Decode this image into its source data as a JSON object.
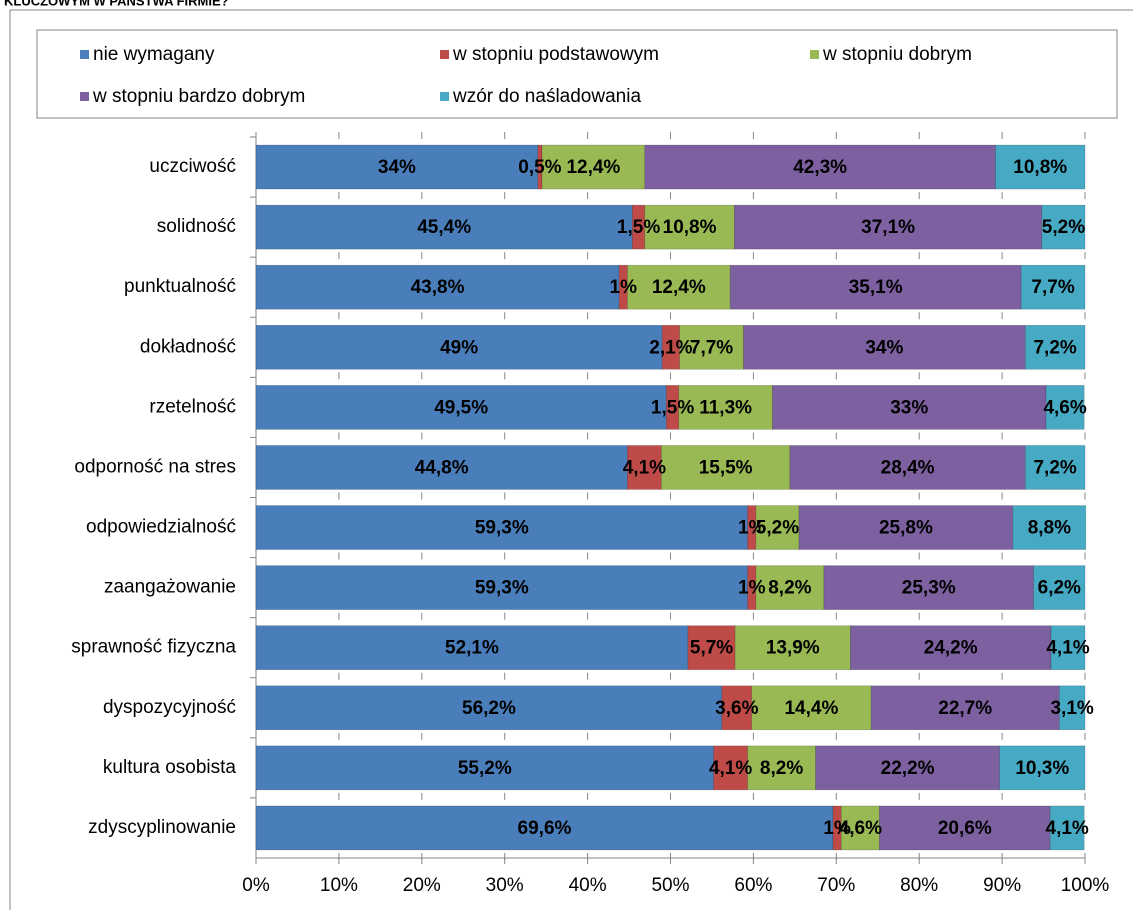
{
  "chart_data": {
    "type": "stacked-bar-horizontal",
    "title": "KLUCZOWYM W PAŃSTWA FIRMIE?",
    "categories": [
      "uczciwość",
      "solidność",
      "punktualność",
      "dokładność",
      "rzetelność",
      "odporność na stres",
      "odpowiedzialność",
      "zaangażowanie",
      "sprawność fizyczna",
      "dyspozycyjność",
      "kultura osobista",
      "zdyscyplinowanie"
    ],
    "series": [
      {
        "name": "nie wymagany",
        "color": "#4a7ebb",
        "values": [
          34,
          45.4,
          43.8,
          49,
          49.5,
          44.8,
          59.3,
          59.3,
          52.1,
          56.2,
          55.2,
          69.6
        ],
        "value_labels": [
          "34%",
          "45,4%",
          "43,8%",
          "49%",
          "49,5%",
          "44,8%",
          "59,3%",
          "59,3%",
          "52,1%",
          "56,2%",
          "55,2%",
          "69,6%"
        ]
      },
      {
        "name": "w stopniu podstawowym",
        "color": "#be4b48",
        "values": [
          0.5,
          1.5,
          1,
          2.1,
          1.5,
          4.1,
          1,
          1,
          5.7,
          3.6,
          4.1,
          1
        ],
        "value_labels": [
          "0,5%",
          "1,5%",
          "1%",
          "2,1%",
          "1,5%",
          "4,1%",
          "1%",
          "1%",
          "5,7%",
          "3,6%",
          "4,1%",
          "1%"
        ]
      },
      {
        "name": "w stopniu dobrym",
        "color": "#98b954",
        "values": [
          12.4,
          10.8,
          12.4,
          7.7,
          11.3,
          15.5,
          5.2,
          8.2,
          13.9,
          14.4,
          8.2,
          4.6
        ],
        "value_labels": [
          "12,4%",
          "10,8%",
          "12,4%",
          "7,7%",
          "11,3%",
          "15,5%",
          "5,2%",
          "8,2%",
          "13,9%",
          "14,4%",
          "8,2%",
          "4,6%"
        ]
      },
      {
        "name": "w stopniu bardzo dobrym",
        "color": "#7d60a0",
        "values": [
          42.3,
          37.1,
          35.1,
          34,
          33,
          28.4,
          25.8,
          25.3,
          24.2,
          22.7,
          22.2,
          20.6
        ],
        "value_labels": [
          "42,3%",
          "37,1%",
          "35,1%",
          "34%",
          "33%",
          "28,4%",
          "25,8%",
          "25,3%",
          "24,2%",
          "22,7%",
          "22,2%",
          "20,6%"
        ]
      },
      {
        "name": "wzór do naśladowania",
        "color": "#46aac5",
        "values": [
          10.8,
          5.2,
          7.7,
          7.2,
          4.6,
          7.2,
          8.8,
          6.2,
          4.1,
          3.1,
          10.3,
          4.1
        ],
        "value_labels": [
          "10,8%",
          "5,2%",
          "7,7%",
          "7,2%",
          "4,6%",
          "7,2%",
          "8,8%",
          "6,2%",
          "4,1%",
          "3,1%",
          "10,3%",
          "4,1%"
        ]
      }
    ],
    "xlim": [
      0,
      100
    ],
    "xticks": [
      {
        "value": 0,
        "label": "0%"
      },
      {
        "value": 10,
        "label": "10%"
      },
      {
        "value": 20,
        "label": "20%"
      },
      {
        "value": 30,
        "label": "30%"
      },
      {
        "value": 40,
        "label": "40%"
      },
      {
        "value": 50,
        "label": "50%"
      },
      {
        "value": 60,
        "label": "60%"
      },
      {
        "value": 70,
        "label": "70%"
      },
      {
        "value": 80,
        "label": "80%"
      },
      {
        "value": 90,
        "label": "90%"
      },
      {
        "value": 100,
        "label": "100%"
      }
    ],
    "legend": "top"
  }
}
